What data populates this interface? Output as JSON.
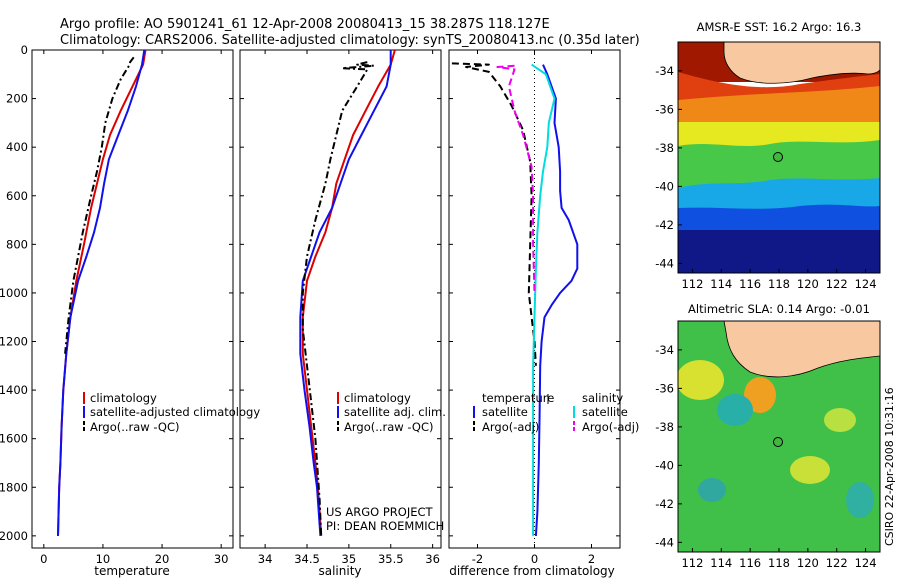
{
  "header": {
    "line1": "Argo profile: AO 5901241_61 12-Apr-2008 20080413_15 38.287S 118.127E",
    "line2": "Climatology: CARS2006. Satellite-adjusted climatology: synTS_20080413.nc (0.35d later)"
  },
  "side_label": "CSIRO 22-Apr-2008 10:31:16",
  "colors": {
    "climatology": "#dd0000",
    "satellite": "#1010ee",
    "argo": "#000000",
    "sal_satellite": "#00dddd",
    "sal_argo": "#ee00ee",
    "land": "#f8c8a0"
  },
  "chart_data": [
    {
      "type": "line",
      "title": "",
      "xlabel": "temperature",
      "ylabel": "",
      "xlim": [
        -2,
        32
      ],
      "ylim": [
        2050,
        0
      ],
      "xticks": [
        "0",
        "10",
        "20",
        "30"
      ],
      "yticks": [
        "0",
        "200",
        "400",
        "600",
        "800",
        "1000",
        "1200",
        "1400",
        "1600",
        "1800",
        "2000"
      ],
      "series": [
        {
          "name": "climatology",
          "style": "solid",
          "color": "#dd0000",
          "x": [
            17.2,
            16.8,
            15.0,
            13.0,
            11.2,
            10.0,
            9.0,
            8.0,
            6.8,
            5.5,
            4.5,
            3.8,
            3.3,
            3.0,
            2.8,
            2.6,
            2.5,
            2.4
          ],
          "y": [
            0,
            60,
            150,
            250,
            350,
            450,
            550,
            650,
            800,
            950,
            1100,
            1250,
            1400,
            1550,
            1700,
            1800,
            1900,
            2000
          ]
        },
        {
          "name": "satellite-adjusted climatology",
          "style": "solid",
          "color": "#1010ee",
          "x": [
            17.0,
            16.6,
            15.6,
            14.2,
            12.6,
            11.0,
            10.2,
            9.5,
            8.5,
            7.2,
            5.8,
            4.5,
            3.8,
            3.3,
            3.0,
            2.8,
            2.6,
            2.5,
            2.4
          ],
          "y": [
            0,
            60,
            150,
            250,
            350,
            450,
            550,
            650,
            750,
            850,
            950,
            1100,
            1250,
            1400,
            1550,
            1700,
            1800,
            1900,
            2000
          ]
        },
        {
          "name": "Argo(..raw -QC)",
          "style": "dashdot",
          "color": "#000000",
          "x": [
            15.2,
            14.6,
            14.4,
            13.0,
            11.6,
            10.4,
            9.8,
            9.0,
            8.0,
            6.6,
            5.0,
            4.2,
            3.6
          ],
          "y": [
            30,
            50,
            65,
            120,
            200,
            300,
            400,
            500,
            600,
            750,
            950,
            1100,
            1250
          ]
        }
      ],
      "legend": {
        "position": "lower-right",
        "entries": [
          "climatology",
          "satellite-adjusted climatology",
          "Argo(..raw -QC)"
        ]
      }
    },
    {
      "type": "line",
      "title": "",
      "xlabel": "salinity",
      "ylabel": "",
      "xlim": [
        33.7,
        36.1
      ],
      "ylim": [
        2050,
        0
      ],
      "xticks": [
        "34",
        "34.5",
        "35",
        "35.5",
        "36"
      ],
      "series": [
        {
          "name": "climatology",
          "style": "solid",
          "color": "#dd0000",
          "x": [
            35.55,
            35.5,
            35.35,
            35.2,
            35.05,
            34.95,
            34.85,
            34.8,
            34.72,
            34.6,
            34.5,
            34.45,
            34.45,
            34.5,
            34.55,
            34.6,
            34.63,
            34.65,
            34.67
          ],
          "y": [
            0,
            60,
            150,
            250,
            350,
            450,
            550,
            650,
            750,
            850,
            950,
            1100,
            1250,
            1400,
            1550,
            1700,
            1800,
            1900,
            2000
          ]
        },
        {
          "name": "satellite adj. clim.",
          "style": "solid",
          "color": "#1010ee",
          "x": [
            35.5,
            35.5,
            35.45,
            35.3,
            35.15,
            35.0,
            34.9,
            34.8,
            34.65,
            34.55,
            34.45,
            34.42,
            34.42,
            34.47,
            34.53,
            34.58,
            34.62,
            34.64,
            34.66
          ],
          "y": [
            0,
            60,
            150,
            250,
            350,
            450,
            550,
            650,
            750,
            850,
            950,
            1100,
            1250,
            1400,
            1550,
            1700,
            1800,
            1900,
            2000
          ]
        },
        {
          "name": "Argo(..raw -QC)",
          "style": "dashdot",
          "color": "#000000",
          "x": [
            35.22,
            35.1,
            35.3,
            34.92,
            35.22,
            35.1,
            34.92,
            34.85,
            34.78,
            34.72,
            34.6,
            34.5,
            34.45,
            34.45,
            34.5,
            34.55,
            34.6,
            34.63,
            34.65,
            34.67
          ],
          "y": [
            50,
            60,
            65,
            75,
            80,
            150,
            250,
            350,
            450,
            550,
            700,
            850,
            1000,
            1150,
            1300,
            1450,
            1600,
            1750,
            1850,
            2000
          ]
        }
      ],
      "legend": {
        "position": "lower-right",
        "entries": [
          "climatology",
          "satellite adj. clim.",
          "Argo(..raw -QC)"
        ]
      },
      "annotations": [
        "US ARGO PROJECT",
        "PI: DEAN ROEMMICH"
      ]
    },
    {
      "type": "line",
      "title": "",
      "xlabel": "difference from climatology",
      "ylabel": "",
      "xlim": [
        -3,
        3
      ],
      "ylim": [
        2050,
        0
      ],
      "xticks": [
        "-2",
        "0",
        "2"
      ],
      "reference_line": {
        "x": 0,
        "style": "dotted"
      },
      "series": [
        {
          "name": "temperature satellite",
          "style": "solid",
          "color": "#1010ee",
          "x": [
            0.3,
            0.45,
            0.75,
            0.7,
            0.85,
            0.9,
            0.9,
            0.95,
            1.2,
            1.5,
            1.5,
            1.3,
            0.9,
            0.6,
            0.35,
            0.25,
            0.2,
            0.18,
            0.15,
            0.1,
            0.05
          ],
          "y": [
            60,
            100,
            200,
            300,
            400,
            500,
            580,
            650,
            700,
            800,
            900,
            950,
            1000,
            1050,
            1100,
            1200,
            1300,
            1500,
            1700,
            1900,
            2000
          ]
        },
        {
          "name": "temperature Argo(-adj)",
          "style": "dashed",
          "color": "#000000",
          "x": [
            -2.9,
            -1.6,
            -2.4,
            -1.6,
            -1.2,
            -0.8,
            -0.4,
            -0.15,
            -0.1,
            -0.15,
            -0.2,
            -0.1,
            0.0,
            0.05
          ],
          "y": [
            55,
            60,
            70,
            90,
            150,
            230,
            330,
            460,
            600,
            800,
            1000,
            1100,
            1200,
            1300
          ]
        },
        {
          "name": "salinity satellite",
          "style": "solid",
          "color": "#00dddd",
          "x": [
            -0.1,
            0.4,
            0.7,
            0.5,
            0.45,
            0.3,
            0.2,
            0.1,
            0.05,
            0.0,
            -0.05,
            -0.05,
            -0.05,
            -0.05
          ],
          "y": [
            60,
            100,
            200,
            300,
            400,
            500,
            600,
            750,
            900,
            1100,
            1300,
            1500,
            1800,
            2000
          ]
        },
        {
          "name": "salinity Argo(-adj)",
          "style": "dashed",
          "color": "#ee00ee",
          "x": [
            -0.7,
            -1.3,
            -0.7,
            -0.9,
            -0.7,
            -0.4,
            -0.1,
            -0.05,
            -0.05,
            0.0
          ],
          "y": [
            65,
            70,
            80,
            150,
            250,
            350,
            480,
            600,
            800,
            1000
          ]
        }
      ],
      "legend": {
        "position": "lower-middle",
        "headers": [
          "temperature",
          "salinity"
        ],
        "entries": [
          "satellite",
          "Argo(-adj)",
          "satellite",
          "Argo(-adj)"
        ]
      }
    },
    {
      "type": "heatmap",
      "title": "AMSR-E SST: 16.2 Argo: 16.3",
      "xlim": [
        111,
        125
      ],
      "ylim": [
        -44.5,
        -32.5
      ],
      "xticks": [
        "112",
        "114",
        "116",
        "118",
        "120",
        "122",
        "124"
      ],
      "yticks": [
        "-34",
        "-36",
        "-38",
        "-40",
        "-42",
        "-44"
      ],
      "marker": {
        "lon": 118.127,
        "lat": -38.287
      }
    },
    {
      "type": "heatmap",
      "title": "Altimetric SLA: 0.14 Argo: -0.01",
      "xlim": [
        111,
        125
      ],
      "ylim": [
        -44.5,
        -32.5
      ],
      "xticks": [
        "112",
        "114",
        "116",
        "118",
        "120",
        "122",
        "124"
      ],
      "yticks": [
        "-34",
        "-36",
        "-38",
        "-40",
        "-42",
        "-44"
      ],
      "marker": {
        "lon": 118.127,
        "lat": -38.287
      }
    }
  ]
}
